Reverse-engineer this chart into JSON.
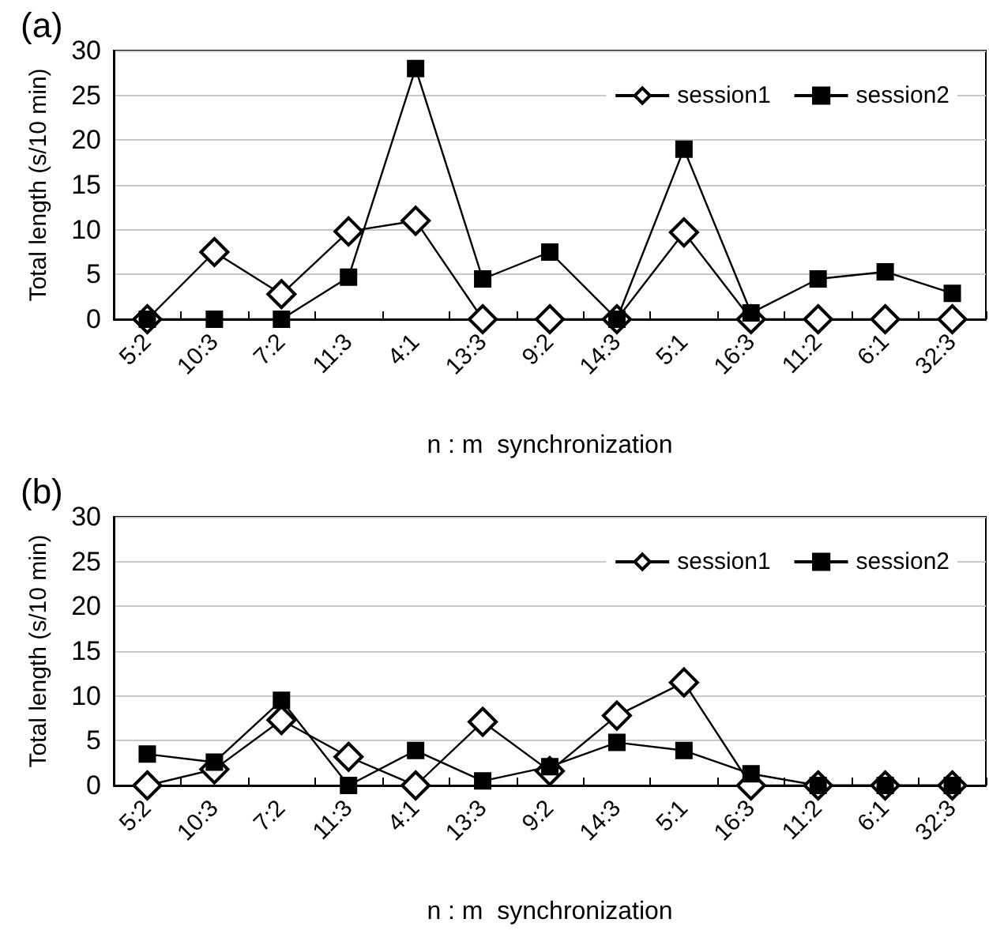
{
  "chart_data": [
    {
      "type": "line",
      "title": "(a)",
      "xlabel": "n : m  synchronization",
      "ylabel": "Total length (s/10 min)",
      "categories": [
        "5:2",
        "10:3",
        "7:2",
        "11:3",
        "4:1",
        "13:3",
        "9:2",
        "14:3",
        "5:1",
        "16:3",
        "11:2",
        "6:1",
        "32:3"
      ],
      "ylim": [
        0,
        30
      ],
      "yticks": [
        0,
        5,
        10,
        15,
        20,
        25,
        30
      ],
      "grid": "y",
      "legend": "top right",
      "series": [
        {
          "name": "session1",
          "color": "#000000",
          "marker": "diamond",
          "values": [
            0,
            7.5,
            2.8,
            9.8,
            11,
            0,
            0,
            0,
            9.7,
            0,
            0,
            0,
            0
          ]
        },
        {
          "name": "session2",
          "color": "#000000",
          "marker": "square",
          "values": [
            0,
            0,
            0,
            4.7,
            28,
            4.5,
            7.5,
            0,
            19,
            0.7,
            4.5,
            5.3,
            2.9
          ]
        }
      ]
    },
    {
      "type": "line",
      "title": "(b)",
      "xlabel": "n : m  synchronization",
      "ylabel": "Total length (s/10 min)",
      "categories": [
        "5:2",
        "10:3",
        "7:2",
        "11:3",
        "4:1",
        "13:3",
        "9:2",
        "14:3",
        "5:1",
        "16:3",
        "11:2",
        "6:1",
        "32:3"
      ],
      "ylim": [
        0,
        30
      ],
      "yticks": [
        0,
        5,
        10,
        15,
        20,
        25,
        30
      ],
      "grid": "y",
      "legend": "top right",
      "series": [
        {
          "name": "session1",
          "color": "#000000",
          "marker": "diamond",
          "values": [
            0,
            1.8,
            7.3,
            3.2,
            0,
            7.1,
            1.6,
            7.8,
            11.5,
            0,
            0,
            0,
            0
          ]
        },
        {
          "name": "session2",
          "color": "#000000",
          "marker": "square",
          "values": [
            3.5,
            2.6,
            9.5,
            0,
            3.9,
            0.5,
            2.1,
            4.8,
            3.9,
            1.3,
            0,
            0,
            0
          ]
        }
      ]
    }
  ]
}
